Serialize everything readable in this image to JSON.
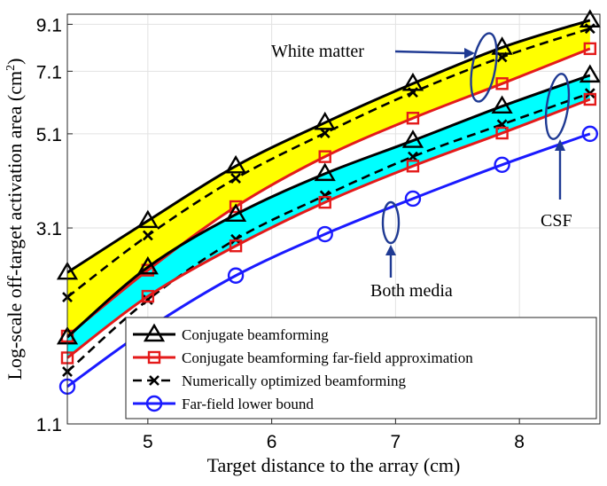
{
  "chart_data": {
    "type": "line",
    "xlabel": "Target distance to the array (cm)",
    "ylabel": "Log-scale off-target activation area (cm",
    "ylabel_sup": "2",
    "ylabel_close": ")",
    "yscale": "log",
    "xlim": [
      4.35,
      8.65
    ],
    "ylim": [
      1.1,
      9.6
    ],
    "xticks": [
      5,
      6,
      7,
      8
    ],
    "xtick_labels": [
      "5",
      "6",
      "7",
      "8"
    ],
    "yticks": [
      1.1,
      3.1,
      5.1,
      7.1,
      9.1
    ],
    "ytick_labels": [
      "1.1",
      "3.1",
      "5.1",
      "7.1",
      "9.1"
    ],
    "grid": true,
    "legend_position": "bottom-right",
    "x": [
      4.35,
      5.0,
      5.71,
      6.43,
      7.14,
      7.86,
      8.57
    ],
    "series": [
      {
        "name": "Conjugate beamforming",
        "medium": "White matter",
        "color": "#000000",
        "marker": "triangle",
        "dash": "solid",
        "values": [
          2.45,
          3.22,
          4.3,
          5.41,
          6.65,
          8.05,
          9.3
        ]
      },
      {
        "name": "Numerically optimized beamforming",
        "medium": "White matter",
        "color": "#000000",
        "marker": "x",
        "dash": "dashed",
        "values": [
          2.15,
          2.98,
          4.03,
          5.12,
          6.35,
          7.65,
          8.9
        ]
      },
      {
        "name": "Conjugate beamforming far-field approximation",
        "medium": "White matter",
        "color": "#e41a1a",
        "marker": "square",
        "dash": "solid",
        "values": [
          1.75,
          2.48,
          3.47,
          4.52,
          5.54,
          6.65,
          8.0
        ]
      },
      {
        "name": "Conjugate beamforming",
        "medium": "CSF",
        "color": "#000000",
        "marker": "triangle",
        "dash": "solid",
        "values": [
          1.74,
          2.52,
          3.33,
          4.13,
          4.92,
          5.9,
          6.95
        ]
      },
      {
        "name": "Numerically optimized beamforming",
        "medium": "CSF",
        "color": "#000000",
        "marker": "x",
        "dash": "dashed",
        "values": [
          1.45,
          2.12,
          2.92,
          3.68,
          4.52,
          5.36,
          6.32
        ]
      },
      {
        "name": "Conjugate beamforming far-field approximation",
        "medium": "CSF",
        "color": "#e41a1a",
        "marker": "square",
        "dash": "solid",
        "values": [
          1.56,
          2.16,
          2.82,
          3.55,
          4.3,
          5.12,
          6.12
        ]
      },
      {
        "name": "Far-field lower bound",
        "medium": "Both media",
        "color": "#1a1aff",
        "marker": "circle",
        "dash": "solid",
        "values": [
          1.34,
          1.82,
          2.41,
          3.0,
          3.62,
          4.33,
          5.1
        ]
      }
    ],
    "bands": [
      {
        "name": "White matter",
        "color": "#ffff00",
        "between": [
          0,
          2
        ]
      },
      {
        "name": "CSF",
        "color": "#00ffff",
        "between": [
          3,
          5
        ]
      }
    ],
    "legend": [
      {
        "label": "Conjugate beamforming",
        "color": "#000000",
        "marker": "triangle",
        "dash": "solid"
      },
      {
        "label": "Conjugate beamforming far-field approximation",
        "color": "#e41a1a",
        "marker": "square",
        "dash": "solid"
      },
      {
        "label": "Numerically optimized beamforming",
        "color": "#000000",
        "marker": "x",
        "dash": "dashed"
      },
      {
        "label": "Far-field lower bound",
        "color": "#1a1aff",
        "marker": "circle",
        "dash": "solid"
      }
    ],
    "annotations": [
      {
        "text": "White matter",
        "target": "White matter"
      },
      {
        "text": "CSF",
        "target": "CSF"
      },
      {
        "text": "Both media",
        "target": "Both media"
      }
    ]
  }
}
